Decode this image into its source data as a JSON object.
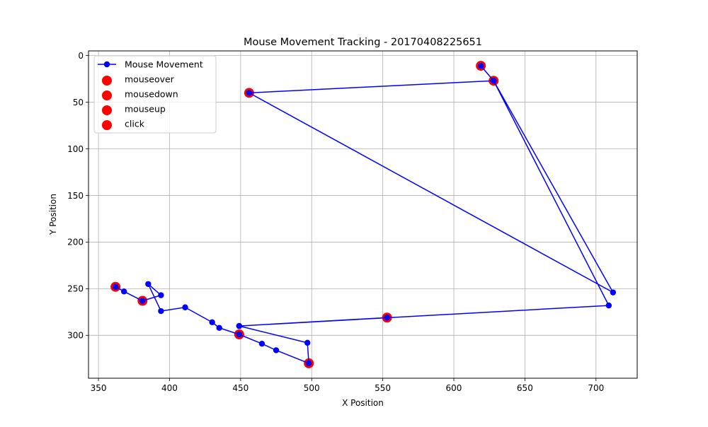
{
  "chart_data": {
    "type": "line",
    "title": "Mouse Movement Tracking - 20170408225651",
    "xlabel": "X Position",
    "ylabel": "Y Position",
    "xlim": [
      343,
      729
    ],
    "ylim": [
      346,
      -5
    ],
    "y_inverted": true,
    "x_ticks": [
      350,
      400,
      450,
      500,
      550,
      600,
      650,
      700
    ],
    "y_ticks": [
      0,
      50,
      100,
      150,
      200,
      250,
      300
    ],
    "grid": true,
    "legend_position": "top-left",
    "series": [
      {
        "name": "Mouse Movement",
        "kind": "line",
        "color": "#0000ff",
        "marker": "circle",
        "points": [
          [
            619,
            11
          ],
          [
            628,
            27
          ],
          [
            456,
            40
          ],
          [
            712,
            254
          ],
          [
            628,
            27
          ],
          [
            709,
            268
          ],
          [
            449,
            290
          ],
          [
            553,
            281
          ],
          [
            449,
            290
          ],
          [
            497,
            308
          ],
          [
            498,
            330
          ],
          [
            475,
            316
          ],
          [
            465,
            309
          ],
          [
            449,
            299
          ],
          [
            435,
            292
          ],
          [
            430,
            286
          ],
          [
            411,
            270
          ],
          [
            394,
            274
          ],
          [
            385,
            245
          ],
          [
            394,
            257
          ],
          [
            381,
            263
          ],
          [
            368,
            253
          ],
          [
            362,
            248
          ]
        ]
      },
      {
        "name": "mouseover",
        "kind": "scatter",
        "color": "#ff0000",
        "points": [
          [
            619,
            11
          ],
          [
            381,
            263
          ],
          [
            362,
            248
          ]
        ]
      },
      {
        "name": "mousedown",
        "kind": "scatter",
        "color": "#ff0000",
        "points": [
          [
            628,
            27
          ],
          [
            449,
            299
          ]
        ]
      },
      {
        "name": "mouseup",
        "kind": "scatter",
        "color": "#ff0000",
        "points": [
          [
            456,
            40
          ],
          [
            498,
            330
          ]
        ]
      },
      {
        "name": "click",
        "kind": "scatter",
        "color": "#ff0000",
        "points": [
          [
            553,
            281
          ]
        ]
      }
    ]
  }
}
